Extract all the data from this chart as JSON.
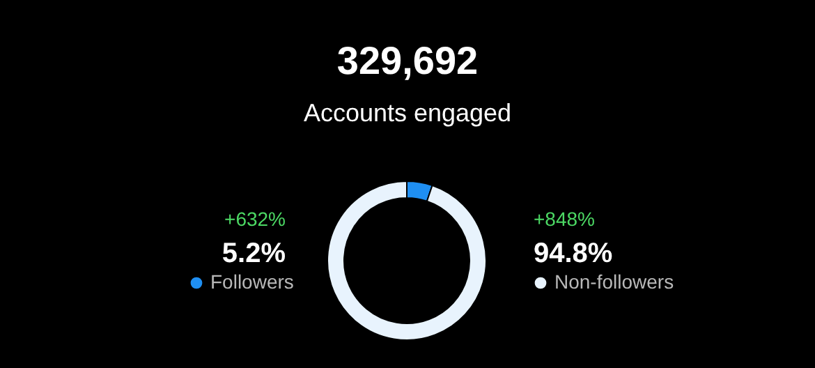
{
  "chart_data": {
    "type": "donut",
    "title": "329,692",
    "subtitle": "Accounts engaged",
    "categories": [
      "Followers",
      "Non-followers"
    ],
    "values": [
      5.2,
      94.8
    ],
    "colors": [
      "#1f8ff2",
      "#e8f3fd"
    ],
    "value_labels": [
      "5.2%",
      "94.8%"
    ],
    "annotations": [
      "+632%",
      "+848%"
    ],
    "legend": "bottom"
  }
}
